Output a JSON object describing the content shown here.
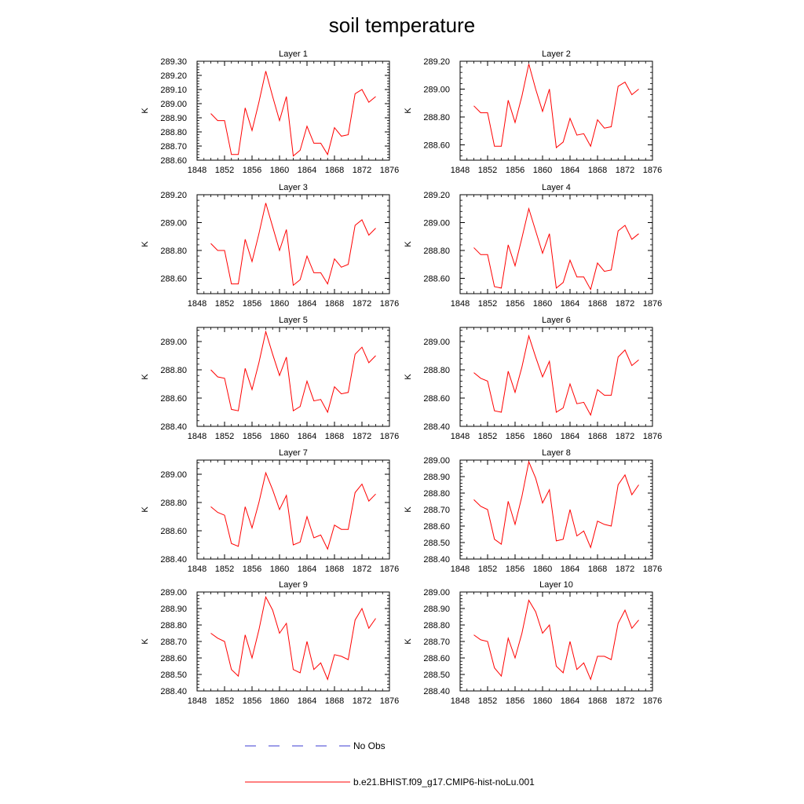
{
  "title": "soil temperature",
  "legend": [
    {
      "label": "No Obs",
      "color": "#3b3bd0",
      "dash": true
    },
    {
      "label": "b.e21.BHIST.f09_g17.CMIP6-hist-noLu.001",
      "color": "#ff0000",
      "dash": false
    }
  ],
  "chart_data": [
    {
      "type": "line",
      "title": "Layer 1",
      "ylabel": "K",
      "xlim": [
        1848,
        1876
      ],
      "ylim": [
        288.6,
        289.3
      ],
      "xticks": [
        "1848",
        "1852",
        "1856",
        "1860",
        "1864",
        "1868",
        "1872",
        "1876"
      ],
      "yticks": [
        "288.60",
        "288.70",
        "288.80",
        "288.90",
        "289.00",
        "289.10",
        "289.20",
        "289.30"
      ],
      "x": [
        1850,
        1851,
        1852,
        1853,
        1854,
        1855,
        1856,
        1857,
        1858,
        1859,
        1860,
        1861,
        1862,
        1863,
        1864,
        1865,
        1866,
        1867,
        1868,
        1869,
        1870,
        1871,
        1872,
        1873,
        1874
      ],
      "series": [
        {
          "name": "b.e21.BHIST.f09_g17.CMIP6-hist-noLu.001",
          "values": [
            288.93,
            288.88,
            288.88,
            288.64,
            288.64,
            288.97,
            288.81,
            289.01,
            289.23,
            289.05,
            288.88,
            289.05,
            288.63,
            288.67,
            288.84,
            288.72,
            288.72,
            288.64,
            288.83,
            288.77,
            288.78,
            289.07,
            289.1,
            289.01,
            289.05
          ]
        }
      ]
    },
    {
      "type": "line",
      "title": "Layer 2",
      "ylabel": "K",
      "xlim": [
        1848,
        1876
      ],
      "ylim": [
        288.49,
        289.2
      ],
      "xticks": [
        "1848",
        "1852",
        "1856",
        "1860",
        "1864",
        "1868",
        "1872",
        "1876"
      ],
      "yticks": [
        "288.60",
        "288.80",
        "289.00",
        "289.20"
      ],
      "x": [
        1850,
        1851,
        1852,
        1853,
        1854,
        1855,
        1856,
        1857,
        1858,
        1859,
        1860,
        1861,
        1862,
        1863,
        1864,
        1865,
        1866,
        1867,
        1868,
        1869,
        1870,
        1871,
        1872,
        1873,
        1874
      ],
      "series": [
        {
          "name": "b.e21.BHIST.f09_g17.CMIP6-hist-noLu.001",
          "values": [
            288.88,
            288.83,
            288.83,
            288.59,
            288.59,
            288.92,
            288.76,
            288.95,
            289.18,
            289.0,
            288.84,
            289.0,
            288.58,
            288.62,
            288.79,
            288.67,
            288.68,
            288.59,
            288.78,
            288.72,
            288.73,
            289.02,
            289.05,
            288.96,
            289.0
          ]
        }
      ]
    },
    {
      "type": "line",
      "title": "Layer 3",
      "ylabel": "K",
      "xlim": [
        1848,
        1876
      ],
      "ylim": [
        288.49,
        289.2
      ],
      "xticks": [
        "1848",
        "1852",
        "1856",
        "1860",
        "1864",
        "1868",
        "1872",
        "1876"
      ],
      "yticks": [
        "288.60",
        "288.80",
        "289.00",
        "289.20"
      ],
      "x": [
        1850,
        1851,
        1852,
        1853,
        1854,
        1855,
        1856,
        1857,
        1858,
        1859,
        1860,
        1861,
        1862,
        1863,
        1864,
        1865,
        1866,
        1867,
        1868,
        1869,
        1870,
        1871,
        1872,
        1873,
        1874
      ],
      "series": [
        {
          "name": "b.e21.BHIST.f09_g17.CMIP6-hist-noLu.001",
          "values": [
            288.85,
            288.8,
            288.8,
            288.56,
            288.56,
            288.88,
            288.72,
            288.92,
            289.14,
            288.97,
            288.8,
            288.95,
            288.55,
            288.59,
            288.76,
            288.64,
            288.64,
            288.56,
            288.74,
            288.68,
            288.7,
            288.98,
            289.02,
            288.91,
            288.96
          ]
        }
      ]
    },
    {
      "type": "line",
      "title": "Layer 4",
      "ylabel": "K",
      "xlim": [
        1848,
        1876
      ],
      "ylim": [
        288.49,
        289.2
      ],
      "xticks": [
        "1848",
        "1852",
        "1856",
        "1860",
        "1864",
        "1868",
        "1872",
        "1876"
      ],
      "yticks": [
        "288.60",
        "288.80",
        "289.00",
        "289.20"
      ],
      "x": [
        1850,
        1851,
        1852,
        1853,
        1854,
        1855,
        1856,
        1857,
        1858,
        1859,
        1860,
        1861,
        1862,
        1863,
        1864,
        1865,
        1866,
        1867,
        1868,
        1869,
        1870,
        1871,
        1872,
        1873,
        1874
      ],
      "series": [
        {
          "name": "b.e21.BHIST.f09_g17.CMIP6-hist-noLu.001",
          "values": [
            288.82,
            288.77,
            288.77,
            288.54,
            288.53,
            288.84,
            288.69,
            288.89,
            289.1,
            288.94,
            288.78,
            288.92,
            288.53,
            288.57,
            288.73,
            288.61,
            288.61,
            288.52,
            288.71,
            288.65,
            288.66,
            288.94,
            288.98,
            288.88,
            288.92
          ]
        }
      ]
    },
    {
      "type": "line",
      "title": "Layer 5",
      "ylabel": "K",
      "xlim": [
        1848,
        1876
      ],
      "ylim": [
        288.4,
        289.1
      ],
      "xticks": [
        "1848",
        "1852",
        "1856",
        "1860",
        "1864",
        "1868",
        "1872",
        "1876"
      ],
      "yticks": [
        "288.40",
        "288.60",
        "288.80",
        "289.00"
      ],
      "x": [
        1850,
        1851,
        1852,
        1853,
        1854,
        1855,
        1856,
        1857,
        1858,
        1859,
        1860,
        1861,
        1862,
        1863,
        1864,
        1865,
        1866,
        1867,
        1868,
        1869,
        1870,
        1871,
        1872,
        1873,
        1874
      ],
      "series": [
        {
          "name": "b.e21.BHIST.f09_g17.CMIP6-hist-noLu.001",
          "values": [
            288.8,
            288.75,
            288.74,
            288.52,
            288.51,
            288.81,
            288.66,
            288.85,
            289.07,
            288.91,
            288.76,
            288.89,
            288.51,
            288.54,
            288.72,
            288.58,
            288.59,
            288.5,
            288.68,
            288.63,
            288.64,
            288.91,
            288.96,
            288.85,
            288.9
          ]
        }
      ]
    },
    {
      "type": "line",
      "title": "Layer 6",
      "ylabel": "K",
      "xlim": [
        1848,
        1876
      ],
      "ylim": [
        288.4,
        289.1
      ],
      "xticks": [
        "1848",
        "1852",
        "1856",
        "1860",
        "1864",
        "1868",
        "1872",
        "1876"
      ],
      "yticks": [
        "288.40",
        "288.60",
        "288.80",
        "289.00"
      ],
      "x": [
        1850,
        1851,
        1852,
        1853,
        1854,
        1855,
        1856,
        1857,
        1858,
        1859,
        1860,
        1861,
        1862,
        1863,
        1864,
        1865,
        1866,
        1867,
        1868,
        1869,
        1870,
        1871,
        1872,
        1873,
        1874
      ],
      "series": [
        {
          "name": "b.e21.BHIST.f09_g17.CMIP6-hist-noLu.001",
          "values": [
            288.78,
            288.74,
            288.72,
            288.51,
            288.5,
            288.79,
            288.64,
            288.82,
            289.04,
            288.89,
            288.75,
            288.86,
            288.5,
            288.53,
            288.7,
            288.56,
            288.57,
            288.48,
            288.66,
            288.62,
            288.62,
            288.89,
            288.94,
            288.83,
            288.87
          ]
        }
      ]
    },
    {
      "type": "line",
      "title": "Layer 7",
      "ylabel": "K",
      "xlim": [
        1848,
        1876
      ],
      "ylim": [
        288.4,
        289.1
      ],
      "xticks": [
        "1848",
        "1852",
        "1856",
        "1860",
        "1864",
        "1868",
        "1872",
        "1876"
      ],
      "yticks": [
        "288.40",
        "288.60",
        "288.80",
        "289.00"
      ],
      "x": [
        1850,
        1851,
        1852,
        1853,
        1854,
        1855,
        1856,
        1857,
        1858,
        1859,
        1860,
        1861,
        1862,
        1863,
        1864,
        1865,
        1866,
        1867,
        1868,
        1869,
        1870,
        1871,
        1872,
        1873,
        1874
      ],
      "series": [
        {
          "name": "b.e21.BHIST.f09_g17.CMIP6-hist-noLu.001",
          "values": [
            288.77,
            288.73,
            288.71,
            288.51,
            288.49,
            288.77,
            288.62,
            288.8,
            289.01,
            288.89,
            288.75,
            288.85,
            288.5,
            288.52,
            288.7,
            288.55,
            288.57,
            288.47,
            288.64,
            288.61,
            288.61,
            288.87,
            288.93,
            288.81,
            288.86
          ]
        }
      ]
    },
    {
      "type": "line",
      "title": "Layer 8",
      "ylabel": "K",
      "xlim": [
        1848,
        1876
      ],
      "ylim": [
        288.4,
        289.0
      ],
      "xticks": [
        "1848",
        "1852",
        "1856",
        "1860",
        "1864",
        "1868",
        "1872",
        "1876"
      ],
      "yticks": [
        "288.40",
        "288.50",
        "288.60",
        "288.70",
        "288.80",
        "288.90",
        "289.00"
      ],
      "x": [
        1850,
        1851,
        1852,
        1853,
        1854,
        1855,
        1856,
        1857,
        1858,
        1859,
        1860,
        1861,
        1862,
        1863,
        1864,
        1865,
        1866,
        1867,
        1868,
        1869,
        1870,
        1871,
        1872,
        1873,
        1874
      ],
      "series": [
        {
          "name": "b.e21.BHIST.f09_g17.CMIP6-hist-noLu.001",
          "values": [
            288.76,
            288.72,
            288.7,
            288.52,
            288.49,
            288.75,
            288.61,
            288.78,
            288.99,
            288.89,
            288.74,
            288.82,
            288.51,
            288.52,
            288.7,
            288.54,
            288.57,
            288.47,
            288.63,
            288.61,
            288.6,
            288.85,
            288.91,
            288.79,
            288.85
          ]
        }
      ]
    },
    {
      "type": "line",
      "title": "Layer 9",
      "ylabel": "K",
      "xlim": [
        1848,
        1876
      ],
      "ylim": [
        288.4,
        289.0
      ],
      "xticks": [
        "1848",
        "1852",
        "1856",
        "1860",
        "1864",
        "1868",
        "1872",
        "1876"
      ],
      "yticks": [
        "288.40",
        "288.50",
        "288.60",
        "288.70",
        "288.80",
        "288.90",
        "289.00"
      ],
      "x": [
        1850,
        1851,
        1852,
        1853,
        1854,
        1855,
        1856,
        1857,
        1858,
        1859,
        1860,
        1861,
        1862,
        1863,
        1864,
        1865,
        1866,
        1867,
        1868,
        1869,
        1870,
        1871,
        1872,
        1873,
        1874
      ],
      "series": [
        {
          "name": "b.e21.BHIST.f09_g17.CMIP6-hist-noLu.001",
          "values": [
            288.75,
            288.72,
            288.7,
            288.53,
            288.49,
            288.74,
            288.6,
            288.77,
            288.97,
            288.89,
            288.75,
            288.81,
            288.53,
            288.51,
            288.7,
            288.53,
            288.57,
            288.47,
            288.62,
            288.61,
            288.59,
            288.83,
            288.9,
            288.78,
            288.84
          ]
        }
      ]
    },
    {
      "type": "line",
      "title": "Layer 10",
      "ylabel": "K",
      "xlim": [
        1848,
        1876
      ],
      "ylim": [
        288.4,
        289.0
      ],
      "xticks": [
        "1848",
        "1852",
        "1856",
        "1860",
        "1864",
        "1868",
        "1872",
        "1876"
      ],
      "yticks": [
        "288.40",
        "288.50",
        "288.60",
        "288.70",
        "288.80",
        "288.90",
        "289.00"
      ],
      "x": [
        1850,
        1851,
        1852,
        1853,
        1854,
        1855,
        1856,
        1857,
        1858,
        1859,
        1860,
        1861,
        1862,
        1863,
        1864,
        1865,
        1866,
        1867,
        1868,
        1869,
        1870,
        1871,
        1872,
        1873,
        1874
      ],
      "series": [
        {
          "name": "b.e21.BHIST.f09_g17.CMIP6-hist-noLu.001",
          "values": [
            288.74,
            288.71,
            288.7,
            288.54,
            288.49,
            288.72,
            288.6,
            288.75,
            288.95,
            288.88,
            288.75,
            288.8,
            288.55,
            288.51,
            288.7,
            288.53,
            288.57,
            288.47,
            288.61,
            288.61,
            288.59,
            288.81,
            288.89,
            288.78,
            288.83
          ]
        }
      ]
    }
  ]
}
